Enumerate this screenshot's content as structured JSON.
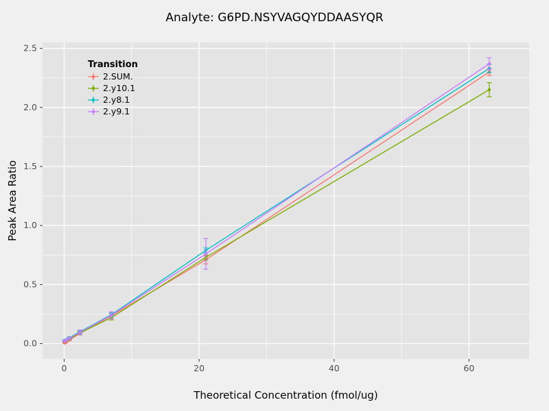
{
  "chart_data": {
    "type": "line",
    "title": "Analyte: G6PD.NSYVAGQYDDAASYQR",
    "xlabel": "Theoretical Concentration (fmol/ug)",
    "ylabel": "Peak Area Ratio",
    "legend_title": "Transition",
    "legend_position": "inside-top-left",
    "grid": true,
    "xlim": [
      -3.2,
      68.9
    ],
    "ylim": [
      -0.13,
      2.55
    ],
    "xticks": [
      0,
      20,
      40,
      60
    ],
    "xtick_labels": [
      "0",
      "20",
      "40",
      "60"
    ],
    "yticks": [
      0,
      0.5,
      1,
      1.5,
      2,
      2.5
    ],
    "ytick_labels": [
      "0.0",
      "0.5",
      "1.0",
      "1.5",
      "2.0",
      "2.5"
    ],
    "x": [
      0.09,
      0.26,
      0.78,
      2.33,
      7,
      21,
      63
    ],
    "series": [
      {
        "name": "2.SUM.",
        "color": "#F8766D",
        "values": [
          0.005,
          0.012,
          0.03,
          0.085,
          0.235,
          0.71,
          2.3
        ],
        "errors": [
          0.003,
          0.004,
          0.006,
          0.012,
          0.02,
          0.035,
          0.03
        ]
      },
      {
        "name": "2.y10.1",
        "color": "#7CAE00",
        "values": [
          0.018,
          0.025,
          0.04,
          0.09,
          0.22,
          0.73,
          2.15
        ],
        "errors": [
          0.004,
          0.005,
          0.008,
          0.015,
          0.02,
          0.02,
          0.06
        ]
      },
      {
        "name": "2.y8.1",
        "color": "#00BFC4",
        "values": [
          0.025,
          0.032,
          0.05,
          0.1,
          0.245,
          0.79,
          2.33
        ],
        "errors": [
          0.004,
          0.005,
          0.008,
          0.012,
          0.015,
          0.02,
          0.035
        ]
      },
      {
        "name": "2.y9.1",
        "color": "#C77CFF",
        "values": [
          0.02,
          0.03,
          0.045,
          0.095,
          0.24,
          0.76,
          2.37
        ],
        "errors": [
          0.004,
          0.005,
          0.01,
          0.02,
          0.03,
          0.13,
          0.05
        ]
      }
    ],
    "colors": {
      "outer_bg": "#F0F0F0",
      "panel_bg": "#E4E4E4",
      "grid_major": "#FFFFFF",
      "grid_minor": "#FFFFFF",
      "tick_mark": "#333333",
      "tick_text": "#4D4D4D",
      "text": "#000000"
    }
  }
}
